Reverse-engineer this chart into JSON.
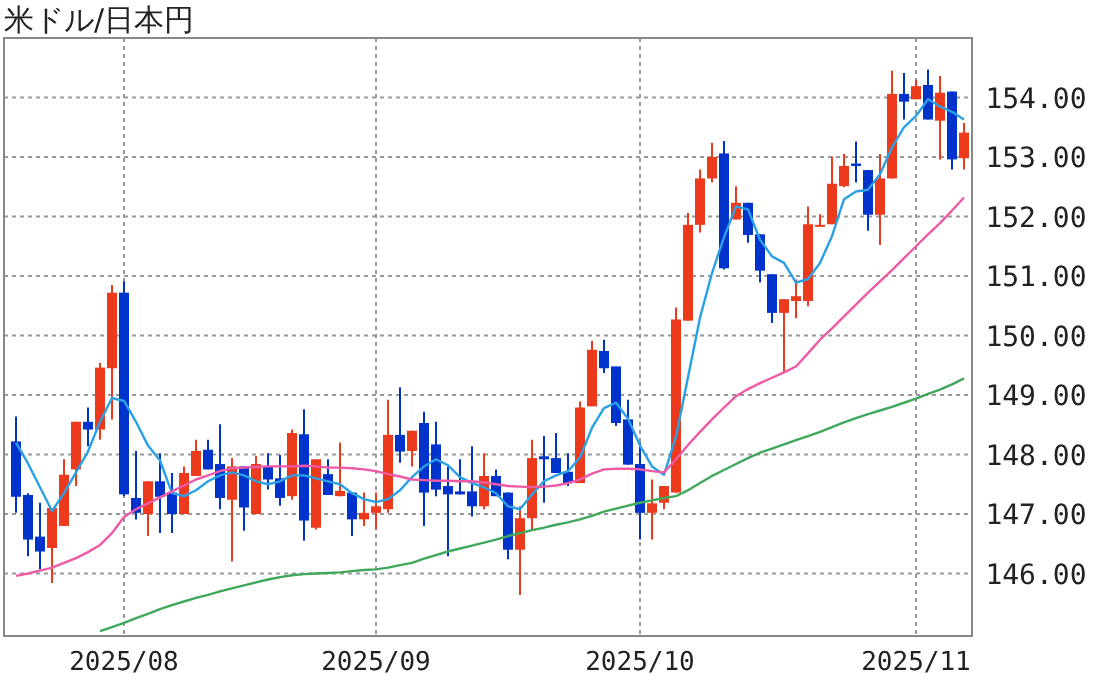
{
  "chart_data": {
    "type": "candlestick",
    "title": "米ドル/日本円",
    "categories": [
      null,
      null,
      null,
      null,
      null,
      null,
      null,
      null,
      null,
      "2025/08",
      null,
      null,
      null,
      null,
      null,
      null,
      null,
      null,
      null,
      null,
      null,
      null,
      null,
      null,
      null,
      null,
      null,
      null,
      null,
      null,
      "2025/09",
      null,
      null,
      null,
      null,
      null,
      null,
      null,
      null,
      null,
      null,
      null,
      null,
      null,
      null,
      null,
      null,
      null,
      null,
      null,
      null,
      null,
      "2025/10",
      null,
      null,
      null,
      null,
      null,
      null,
      null,
      null,
      null,
      null,
      null,
      null,
      null,
      null,
      null,
      null,
      null,
      null,
      null,
      null,
      null,
      null,
      "2025/11",
      null,
      null,
      null,
      null
    ],
    "ohlc": [
      [
        148.22,
        148.64,
        147.02,
        147.29
      ],
      [
        147.32,
        147.35,
        146.29,
        146.57
      ],
      [
        146.62,
        147.19,
        146.07,
        146.37
      ],
      [
        146.43,
        147.1,
        145.84,
        147.1
      ],
      [
        146.8,
        147.92,
        146.8,
        147.66
      ],
      [
        147.75,
        148.55,
        147.47,
        148.55
      ],
      [
        148.55,
        148.79,
        148.14,
        148.42
      ],
      [
        148.42,
        149.54,
        148.25,
        149.46
      ],
      [
        149.45,
        150.85,
        148.59,
        150.72
      ],
      [
        150.72,
        150.91,
        147.3,
        147.33
      ],
      [
        147.27,
        148.06,
        146.91,
        147.02
      ],
      [
        147.0,
        147.55,
        146.63,
        147.55
      ],
      [
        147.55,
        148.02,
        146.68,
        147.29
      ],
      [
        147.36,
        147.69,
        146.68,
        147.0
      ],
      [
        147.0,
        147.8,
        147.0,
        147.69
      ],
      [
        147.64,
        148.25,
        147.64,
        148.06
      ],
      [
        148.08,
        148.25,
        147.75,
        147.75
      ],
      [
        147.84,
        148.51,
        147.08,
        147.27
      ],
      [
        147.24,
        147.94,
        146.2,
        147.8
      ],
      [
        147.8,
        147.8,
        146.72,
        147.11
      ],
      [
        147.0,
        147.97,
        147.0,
        147.84
      ],
      [
        147.8,
        148.02,
        147.41,
        147.58
      ],
      [
        147.6,
        147.99,
        147.14,
        147.27
      ],
      [
        147.3,
        148.42,
        147.24,
        148.36
      ],
      [
        148.34,
        148.76,
        146.55,
        146.89
      ],
      [
        146.77,
        147.92,
        146.74,
        147.92
      ],
      [
        147.67,
        147.92,
        147.32,
        147.32
      ],
      [
        147.3,
        148.2,
        147.3,
        147.39
      ],
      [
        147.36,
        147.36,
        146.63,
        146.91
      ],
      [
        146.91,
        147.36,
        146.8,
        147.02
      ],
      [
        147.02,
        147.36,
        146.74,
        147.13
      ],
      [
        147.08,
        148.92,
        147.02,
        148.33
      ],
      [
        148.33,
        149.13,
        147.86,
        148.05
      ],
      [
        148.06,
        148.4,
        147.8,
        148.4
      ],
      [
        148.53,
        148.72,
        146.8,
        147.36
      ],
      [
        148.17,
        148.55,
        147.3,
        147.41
      ],
      [
        147.47,
        147.8,
        146.29,
        147.33
      ],
      [
        147.38,
        147.92,
        147.33,
        147.33
      ],
      [
        147.38,
        148.14,
        146.96,
        147.13
      ],
      [
        147.13,
        148.02,
        147.08,
        147.64
      ],
      [
        147.64,
        147.75,
        147.3,
        147.3
      ],
      [
        147.36,
        147.36,
        146.24,
        146.4
      ],
      [
        146.4,
        147.13,
        145.64,
        146.93
      ],
      [
        146.93,
        148.25,
        146.74,
        147.94
      ],
      [
        147.97,
        148.31,
        147.19,
        147.92
      ],
      [
        147.94,
        148.36,
        147.69,
        147.69
      ],
      [
        147.71,
        148.02,
        147.47,
        147.52
      ],
      [
        147.52,
        148.89,
        147.52,
        148.79
      ],
      [
        148.81,
        149.91,
        148.81,
        149.76
      ],
      [
        149.74,
        149.93,
        149.37,
        149.45
      ],
      [
        149.48,
        149.48,
        148.48,
        148.53
      ],
      [
        148.59,
        148.92,
        147.83,
        147.83
      ],
      [
        147.84,
        148.2,
        146.57,
        147.02
      ],
      [
        147.02,
        147.58,
        146.57,
        147.18
      ],
      [
        147.19,
        147.47,
        147.08,
        147.47
      ],
      [
        147.36,
        150.47,
        147.36,
        150.27
      ],
      [
        150.25,
        152.06,
        150.25,
        151.86
      ],
      [
        151.86,
        152.79,
        151.73,
        152.64
      ],
      [
        152.64,
        153.24,
        152.57,
        153.0
      ],
      [
        153.06,
        153.27,
        151.11,
        151.13
      ],
      [
        151.95,
        152.51,
        151.95,
        152.23
      ],
      [
        152.23,
        152.23,
        151.56,
        151.69
      ],
      [
        151.7,
        151.7,
        150.89,
        151.09
      ],
      [
        151.03,
        151.03,
        150.21,
        150.38
      ],
      [
        150.38,
        150.61,
        149.37,
        150.61
      ],
      [
        150.58,
        150.94,
        150.29,
        150.66
      ],
      [
        150.58,
        152.17,
        150.49,
        151.87
      ],
      [
        151.84,
        152.04,
        151.84,
        151.86
      ],
      [
        151.87,
        153.01,
        151.87,
        152.55
      ],
      [
        152.51,
        153.05,
        152.49,
        152.85
      ],
      [
        152.89,
        153.26,
        152.57,
        152.85
      ],
      [
        152.78,
        152.78,
        151.76,
        152.03
      ],
      [
        152.03,
        153.05,
        151.52,
        152.64
      ],
      [
        152.64,
        154.45,
        152.64,
        154.06
      ],
      [
        154.06,
        154.41,
        153.63,
        153.93
      ],
      [
        153.97,
        154.3,
        153.97,
        154.19
      ],
      [
        154.21,
        154.47,
        153.63,
        153.63
      ],
      [
        153.61,
        154.36,
        152.96,
        154.08
      ],
      [
        154.1,
        154.1,
        152.79,
        152.96
      ],
      [
        152.98,
        153.57,
        152.79,
        153.41
      ]
    ],
    "colors": [
      "#0033cc",
      "#0033cc",
      "#0033cc",
      "#ee3a1c",
      "#ee3a1c",
      "#ee3a1c",
      "#0033cc",
      "#ee3a1c",
      "#ee3a1c",
      "#0033cc",
      "#0033cc",
      "#ee3a1c",
      "#0033cc",
      "#0033cc",
      "#ee3a1c",
      "#ee3a1c",
      "#0033cc",
      "#0033cc",
      "#ee3a1c",
      "#0033cc",
      "#ee3a1c",
      "#0033cc",
      "#0033cc",
      "#ee3a1c",
      "#0033cc",
      "#ee3a1c",
      "#0033cc",
      "#ee3a1c",
      "#0033cc",
      "#ee3a1c",
      "#ee3a1c",
      "#ee3a1c",
      "#0033cc",
      "#ee3a1c",
      "#0033cc",
      "#0033cc",
      "#0033cc",
      "#0033cc",
      "#0033cc",
      "#ee3a1c",
      "#0033cc",
      "#0033cc",
      "#ee3a1c",
      "#ee3a1c",
      "#0033cc",
      "#0033cc",
      "#0033cc",
      "#ee3a1c",
      "#ee3a1c",
      "#0033cc",
      "#0033cc",
      "#0033cc",
      "#0033cc",
      "#ee3a1c",
      "#ee3a1c",
      "#ee3a1c",
      "#ee3a1c",
      "#ee3a1c",
      "#ee3a1c",
      "#0033cc",
      "#ee3a1c",
      "#0033cc",
      "#0033cc",
      "#0033cc",
      "#ee3a1c",
      "#ee3a1c",
      "#ee3a1c",
      "#ee3a1c",
      "#ee3a1c",
      "#ee3a1c",
      "#0033cc",
      "#0033cc",
      "#ee3a1c",
      "#ee3a1c",
      "#0033cc",
      "#ee3a1c",
      "#0033cc",
      "#ee3a1c",
      "#0033cc",
      "#ee3a1c"
    ],
    "series": [
      {
        "type": "line",
        "color": "#2aa0e6",
        "values": [
          148.2,
          147.85,
          147.45,
          147.05,
          147.35,
          147.7,
          148.05,
          148.55,
          148.95,
          148.9,
          148.55,
          148.15,
          147.9,
          147.35,
          147.3,
          147.4,
          147.55,
          147.65,
          147.7,
          147.65,
          147.55,
          147.5,
          147.55,
          147.65,
          147.65,
          147.6,
          147.55,
          147.5,
          147.35,
          147.25,
          147.2,
          147.25,
          147.4,
          147.62,
          147.8,
          147.92,
          147.82,
          147.62,
          147.52,
          147.45,
          147.35,
          147.13,
          147.08,
          147.33,
          147.55,
          147.65,
          147.72,
          147.95,
          148.45,
          148.78,
          148.87,
          148.6,
          148.15,
          147.8,
          147.66,
          148.3,
          149.3,
          150.3,
          151.05,
          151.65,
          152.17,
          152.12,
          151.61,
          151.33,
          151.22,
          150.89,
          150.95,
          151.22,
          151.67,
          152.29,
          152.42,
          152.45,
          152.71,
          153.16,
          153.5,
          153.69,
          153.97,
          153.85,
          153.76,
          153.63
        ]
      },
      {
        "type": "line",
        "color": "#ee5aa6",
        "values": [
          145.96,
          146.0,
          146.05,
          146.1,
          146.18,
          146.26,
          146.36,
          146.48,
          146.68,
          146.95,
          147.08,
          147.18,
          147.28,
          147.38,
          147.48,
          147.58,
          147.65,
          147.72,
          147.77,
          147.78,
          147.79,
          147.8,
          147.8,
          147.8,
          147.81,
          147.8,
          147.78,
          147.78,
          147.77,
          147.75,
          147.72,
          147.67,
          147.63,
          147.58,
          147.57,
          147.56,
          147.56,
          147.55,
          147.55,
          147.53,
          147.5,
          147.47,
          147.46,
          147.45,
          147.46,
          147.48,
          147.52,
          147.58,
          147.68,
          147.75,
          147.76,
          147.76,
          147.75,
          147.72,
          147.7,
          147.92,
          148.16,
          148.38,
          148.59,
          148.79,
          148.98,
          149.1,
          149.2,
          149.29,
          149.38,
          149.48,
          149.7,
          149.93,
          150.12,
          150.32,
          150.52,
          150.72,
          150.91,
          151.1,
          151.3,
          151.5,
          151.7,
          151.89,
          152.1,
          152.32
        ]
      },
      {
        "type": "line",
        "color": "#3fa85c",
        "values": [
          null,
          null,
          null,
          null,
          null,
          null,
          null,
          145.03,
          145.1,
          145.17,
          145.25,
          145.32,
          145.4,
          145.47,
          145.53,
          145.59,
          145.64,
          145.7,
          145.75,
          145.8,
          145.85,
          145.9,
          145.94,
          145.97,
          145.99,
          146.0,
          146.01,
          146.02,
          146.04,
          146.06,
          146.07,
          146.1,
          146.14,
          146.18,
          146.25,
          146.31,
          146.37,
          146.42,
          146.47,
          146.52,
          146.57,
          146.63,
          146.68,
          146.73,
          146.77,
          146.82,
          146.86,
          146.91,
          146.97,
          147.04,
          147.09,
          147.14,
          147.19,
          147.23,
          147.27,
          147.3,
          147.4,
          147.52,
          147.64,
          147.74,
          147.84,
          147.94,
          148.03,
          148.1,
          148.17,
          148.24,
          148.31,
          148.38,
          148.46,
          148.54,
          148.61,
          148.68,
          148.74,
          148.8,
          148.87,
          148.94,
          149.02,
          149.09,
          149.18,
          149.28
        ]
      }
    ],
    "ylim": [
      144.95,
      155.0
    ],
    "yticks": [
      {
        "value": 146,
        "label": "146.00"
      },
      {
        "value": 147,
        "label": "147.00"
      },
      {
        "value": 148,
        "label": "148.00"
      },
      {
        "value": 149,
        "label": "149.00"
      },
      {
        "value": 150,
        "label": "150.00"
      },
      {
        "value": 151,
        "label": "151.00"
      },
      {
        "value": 152,
        "label": "152.00"
      },
      {
        "value": 153,
        "label": "153.00"
      },
      {
        "value": 154,
        "label": "154.00"
      }
    ],
    "grid": true
  }
}
